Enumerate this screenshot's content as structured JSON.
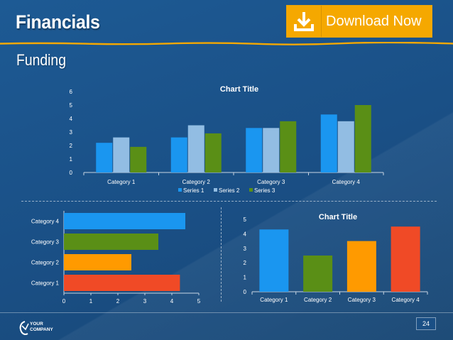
{
  "slide": {
    "title": "Financials",
    "subtitle": "Funding",
    "page_number": "24"
  },
  "download": {
    "label": "Download Now",
    "icon": "download-icon"
  },
  "logo": {
    "line1": "YOUR",
    "line2": "COMPANY",
    "icon": "company-logo-icon"
  },
  "colors": {
    "series1": "#1a96f0",
    "series2": "#92bde3",
    "series3": "#5a8f16",
    "orange": "#ff9a00",
    "red": "#f04a26",
    "download": "#f5a800"
  },
  "chart_data": [
    {
      "type": "bar",
      "title": "Chart Title",
      "categories": [
        "Category 1",
        "Category 2",
        "Category 3",
        "Category 4"
      ],
      "series": [
        {
          "name": "Series 1",
          "values": [
            2.2,
            2.6,
            3.3,
            4.3
          ]
        },
        {
          "name": "Series 2",
          "values": [
            2.6,
            3.5,
            3.3,
            3.8
          ]
        },
        {
          "name": "Series 3",
          "values": [
            1.9,
            2.9,
            3.8,
            5.0
          ]
        }
      ],
      "ylim": [
        0,
        6
      ],
      "yticks": [
        "0",
        "1",
        "2",
        "3",
        "4",
        "5",
        "6"
      ],
      "legend": "bottom"
    },
    {
      "type": "bar",
      "orientation": "horizontal",
      "title": "",
      "categories": [
        "Category 1",
        "Category 2",
        "Category 3",
        "Category 4"
      ],
      "values": [
        4.3,
        2.5,
        3.5,
        4.5
      ],
      "xlim": [
        0,
        5
      ],
      "xticks": [
        "0",
        "1",
        "2",
        "3",
        "4",
        "5"
      ]
    },
    {
      "type": "bar",
      "title": "Chart Title",
      "categories": [
        "Category 1",
        "Category 2",
        "Category 3",
        "Category 4"
      ],
      "values": [
        4.3,
        2.5,
        3.5,
        4.5
      ],
      "ylim": [
        0,
        5
      ],
      "yticks": [
        "0",
        "1",
        "2",
        "3",
        "4",
        "5"
      ]
    }
  ]
}
